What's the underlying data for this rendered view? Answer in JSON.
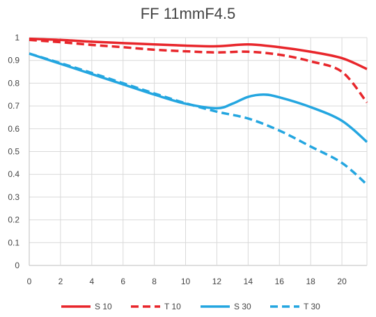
{
  "chart_data": {
    "type": "line",
    "title": "FF 11mmF4.5",
    "xlabel": "",
    "ylabel": "",
    "xlim": [
      0,
      21.6
    ],
    "ylim": [
      0,
      1
    ],
    "x_ticks": [
      0,
      2,
      4,
      6,
      8,
      10,
      12,
      14,
      16,
      18,
      20
    ],
    "y_ticks": [
      0,
      0.1,
      0.2,
      0.3,
      0.4,
      0.5,
      0.6,
      0.7,
      0.8,
      0.9,
      1
    ],
    "y_tick_labels": [
      "0",
      "0.1",
      "0.2",
      "0.3",
      "0.4",
      "0.5",
      "0.6",
      "0.7",
      "0.8",
      "0.9",
      "1"
    ],
    "grid": true,
    "legend": "bottom",
    "series": [
      {
        "name": "S 10",
        "color": "#e8262b",
        "dash": "solid",
        "points": [
          [
            0,
            0.995
          ],
          [
            2,
            0.99
          ],
          [
            4,
            0.982
          ],
          [
            6,
            0.976
          ],
          [
            8,
            0.97
          ],
          [
            10,
            0.965
          ],
          [
            12,
            0.962
          ],
          [
            14,
            0.97
          ],
          [
            16,
            0.958
          ],
          [
            18,
            0.938
          ],
          [
            20,
            0.91
          ],
          [
            21.6,
            0.862
          ]
        ]
      },
      {
        "name": "T 10",
        "color": "#e8262b",
        "dash": "dashed",
        "points": [
          [
            0,
            0.99
          ],
          [
            2,
            0.98
          ],
          [
            4,
            0.968
          ],
          [
            6,
            0.958
          ],
          [
            8,
            0.947
          ],
          [
            10,
            0.94
          ],
          [
            12,
            0.935
          ],
          [
            14,
            0.938
          ],
          [
            16,
            0.925
          ],
          [
            18,
            0.896
          ],
          [
            20,
            0.85
          ],
          [
            21.6,
            0.715
          ]
        ]
      },
      {
        "name": "S 30",
        "color": "#24a6e0",
        "dash": "solid",
        "points": [
          [
            0,
            0.93
          ],
          [
            2,
            0.885
          ],
          [
            4,
            0.84
          ],
          [
            6,
            0.795
          ],
          [
            8,
            0.75
          ],
          [
            10,
            0.71
          ],
          [
            12,
            0.69
          ],
          [
            13,
            0.71
          ],
          [
            14,
            0.74
          ],
          [
            15,
            0.75
          ],
          [
            16,
            0.738
          ],
          [
            18,
            0.695
          ],
          [
            20,
            0.635
          ],
          [
            21.6,
            0.542
          ]
        ]
      },
      {
        "name": "T 30",
        "color": "#24a6e0",
        "dash": "dashed",
        "points": [
          [
            0,
            0.93
          ],
          [
            2,
            0.888
          ],
          [
            4,
            0.845
          ],
          [
            6,
            0.8
          ],
          [
            8,
            0.755
          ],
          [
            10,
            0.712
          ],
          [
            12,
            0.675
          ],
          [
            14,
            0.645
          ],
          [
            16,
            0.592
          ],
          [
            18,
            0.522
          ],
          [
            20,
            0.45
          ],
          [
            21.6,
            0.355
          ]
        ]
      }
    ]
  }
}
